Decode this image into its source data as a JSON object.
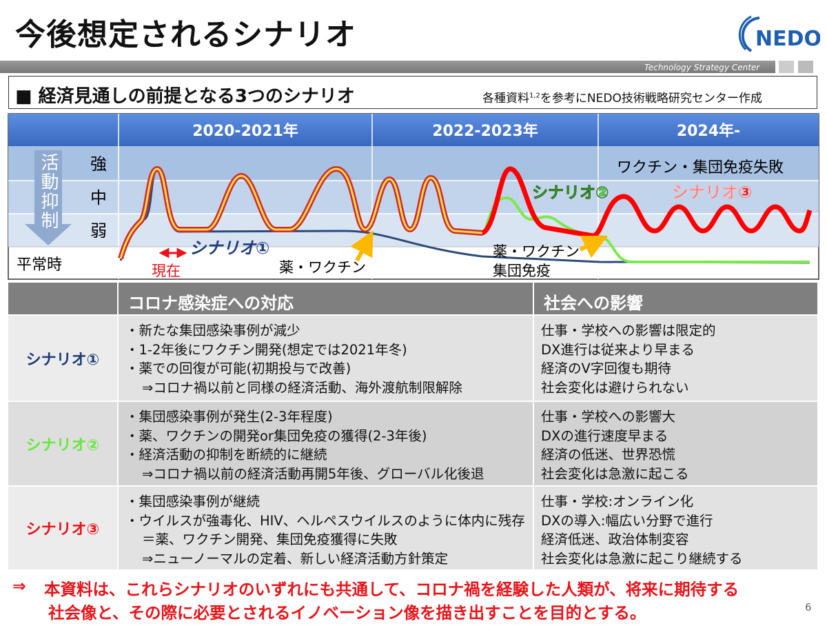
{
  "header": {
    "title": "今後想定されるシナリオ",
    "logo": "NEDO",
    "org": "Technology Strategy Center"
  },
  "section": {
    "title": "経済見通しの前提となる3つのシナリオ",
    "source_pre": "各種資料",
    "source_sup": "1,2",
    "source_post": "を参考にNEDO技術戦略研究センター作成"
  },
  "diagram": {
    "periods": [
      "2020-2021年",
      "2022-2023年",
      "2024年-"
    ],
    "axis_label": "活動抑制",
    "levels": [
      "強",
      "中",
      "弱"
    ],
    "baseline": "平常時",
    "now": "現在",
    "scenario1": "シナリオ①",
    "drug1": "薬・ワクチン",
    "scenario2": "シナリオ②",
    "drug2": "薬・ワクチン",
    "herd": "集団免疫",
    "failure": "ワクチン・集団免疫失敗",
    "scenario3": "シナリオ③"
  },
  "table": {
    "headers": [
      "コロナ感染症への対応",
      "社会への影響"
    ],
    "rows": [
      {
        "name": "シナリオ①",
        "response": [
          "・新たな集団感染事例が減少",
          "・1-2年後にワクチン開発(想定では2021年冬)",
          "・薬での回復が可能(初期投与で改善)",
          "⇒コロナ禍以前と同様の経済活動、海外渡航制限解除"
        ],
        "impact": [
          "仕事・学校への影響は限定的",
          "DX進行は従来より早まる",
          "経済のV字回復も期待",
          "社会変化は避けられない"
        ]
      },
      {
        "name": "シナリオ②",
        "response": [
          "・集団感染事例が発生(2-3年程度)",
          "・薬、ワクチンの開発or集団免疫の獲得(2-3年後)",
          "・経済活動の抑制を断続的に継続",
          "⇒コロナ禍以前の経済活動再開5年後、グローバル化後退"
        ],
        "impact": [
          "仕事・学校への影響大",
          "DXの進行速度早まる",
          "経済の低迷、世界恐慌",
          "社会変化は急激に起こる"
        ]
      },
      {
        "name": "シナリオ③",
        "response": [
          "・集団感染事例が継続",
          "・ウイルスが強毒化、HIV、ヘルペスウイルスのように体内に残存",
          "＝薬、ワクチン開発、集団免疫獲得に失敗",
          "⇒ニューノーマルの定着、新しい経済活動方針策定"
        ],
        "impact": [
          "仕事・学校:オンライン化",
          "DXの導入:幅広い分野で進行",
          "経済低迷、政治体制変容",
          "社会変化は急激に起こり継続する"
        ]
      }
    ]
  },
  "conclusion": {
    "arrow": "⇒",
    "lines": [
      "本資料は、これらシナリオのいずれにも共通して、コロナ禍を経験した人類が、将来に期待する",
      "社会像と、その際に必要とされるイノベーション像を描き出すことを目的とする。"
    ]
  },
  "page_number": "6"
}
